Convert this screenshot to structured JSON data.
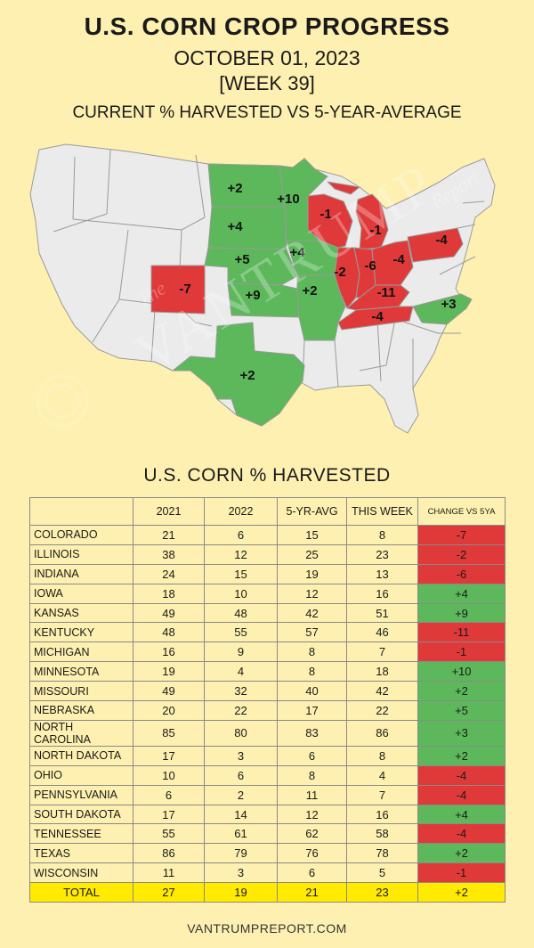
{
  "header": {
    "title": "U.S. CORN CROP PROGRESS",
    "date": "OCTOBER 01, 2023",
    "week": "[WEEK 39]",
    "subtitle": "CURRENT % HARVESTED VS 5-YEAR-AVERAGE"
  },
  "watermark": {
    "word": "VANTRUMP",
    "prefix": "The",
    "suffix": "Report"
  },
  "colors": {
    "background": "#fdf0b0",
    "positive": "#5cb85a",
    "negative": "#e0393a",
    "neutral": "#ebebeb",
    "total": "#ffea00"
  },
  "map_labels": [
    {
      "state": "NORTH DAKOTA",
      "text": "+2"
    },
    {
      "state": "MINNESOTA",
      "text": "+10"
    },
    {
      "state": "SOUTH DAKOTA",
      "text": "+4"
    },
    {
      "state": "NEBRASKA",
      "text": "+5"
    },
    {
      "state": "IOWA",
      "text": "+4"
    },
    {
      "state": "KANSAS",
      "text": "+9"
    },
    {
      "state": "MISSOURI",
      "text": "+2"
    },
    {
      "state": "COLORADO",
      "text": "-7"
    },
    {
      "state": "TEXAS",
      "text": "+2"
    },
    {
      "state": "WISCONSIN",
      "text": "-1"
    },
    {
      "state": "MICHIGAN",
      "text": "-1"
    },
    {
      "state": "ILLINOIS",
      "text": "-2"
    },
    {
      "state": "INDIANA",
      "text": "-6"
    },
    {
      "state": "OHIO",
      "text": "-4"
    },
    {
      "state": "PENNSYLVANIA",
      "text": "-4"
    },
    {
      "state": "KENTUCKY",
      "text": "-11"
    },
    {
      "state": "TENNESSEE",
      "text": "-4"
    },
    {
      "state": "NORTH CAROLINA",
      "text": "+3"
    }
  ],
  "table_title": "U.S. CORN % HARVESTED",
  "chart_data": {
    "type": "table",
    "title": "U.S. CORN % HARVESTED",
    "columns": [
      "",
      "2021",
      "2022",
      "5-YR-AVG",
      "THIS WEEK",
      "CHANGE VS 5YA"
    ],
    "rows": [
      {
        "state": "COLORADO",
        "y2021": "21",
        "y2022": "6",
        "avg": "15",
        "week": "8",
        "change": "-7"
      },
      {
        "state": "ILLINOIS",
        "y2021": "38",
        "y2022": "12",
        "avg": "25",
        "week": "23",
        "change": "-2"
      },
      {
        "state": "INDIANA",
        "y2021": "24",
        "y2022": "15",
        "avg": "19",
        "week": "13",
        "change": "-6"
      },
      {
        "state": "IOWA",
        "y2021": "18",
        "y2022": "10",
        "avg": "12",
        "week": "16",
        "change": "+4"
      },
      {
        "state": "KANSAS",
        "y2021": "49",
        "y2022": "48",
        "avg": "42",
        "week": "51",
        "change": "+9"
      },
      {
        "state": "KENTUCKY",
        "y2021": "48",
        "y2022": "55",
        "avg": "57",
        "week": "46",
        "change": "-11"
      },
      {
        "state": "MICHIGAN",
        "y2021": "16",
        "y2022": "9",
        "avg": "8",
        "week": "7",
        "change": "-1"
      },
      {
        "state": "MINNESOTA",
        "y2021": "19",
        "y2022": "4",
        "avg": "8",
        "week": "18",
        "change": "+10"
      },
      {
        "state": "MISSOURI",
        "y2021": "49",
        "y2022": "32",
        "avg": "40",
        "week": "42",
        "change": "+2"
      },
      {
        "state": "NEBRASKA",
        "y2021": "20",
        "y2022": "22",
        "avg": "17",
        "week": "22",
        "change": "+5"
      },
      {
        "state": "NORTH CAROLINA",
        "y2021": "85",
        "y2022": "80",
        "avg": "83",
        "week": "86",
        "change": "+3"
      },
      {
        "state": "NORTH DAKOTA",
        "y2021": "17",
        "y2022": "3",
        "avg": "6",
        "week": "8",
        "change": "+2"
      },
      {
        "state": "OHIO",
        "y2021": "10",
        "y2022": "6",
        "avg": "8",
        "week": "4",
        "change": "-4"
      },
      {
        "state": "PENNSYLVANIA",
        "y2021": "6",
        "y2022": "2",
        "avg": "11",
        "week": "7",
        "change": "-4"
      },
      {
        "state": "SOUTH DAKOTA",
        "y2021": "17",
        "y2022": "14",
        "avg": "12",
        "week": "16",
        "change": "+4"
      },
      {
        "state": "TENNESSEE",
        "y2021": "55",
        "y2022": "61",
        "avg": "62",
        "week": "58",
        "change": "-4"
      },
      {
        "state": "TEXAS",
        "y2021": "86",
        "y2022": "79",
        "avg": "76",
        "week": "78",
        "change": "+2"
      },
      {
        "state": "WISCONSIN",
        "y2021": "11",
        "y2022": "3",
        "avg": "6",
        "week": "5",
        "change": "-1"
      }
    ],
    "total": {
      "state": "TOTAL",
      "y2021": "27",
      "y2022": "19",
      "avg": "21",
      "week": "23",
      "change": "+2"
    }
  },
  "footer": "VANTRUMPREPORT.COM"
}
